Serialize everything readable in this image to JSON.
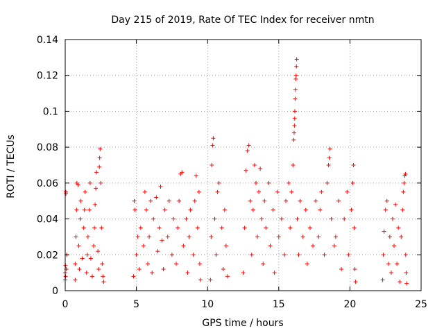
{
  "chart_data": {
    "type": "scatter",
    "title": "Day 215 of 2019, Rate Of TEC Index for receiver nmtn",
    "xlabel": "GPS time / hours",
    "ylabel": "ROTI / TECUs",
    "xlim": [
      0,
      25
    ],
    "ylim": [
      0,
      0.14
    ],
    "xticks": [
      0,
      5,
      10,
      15,
      20,
      25
    ],
    "yticks": [
      0,
      0.02,
      0.04,
      0.06,
      0.08,
      0.1,
      0.12,
      0.14
    ],
    "xtick_labels": [
      "0",
      "5",
      "10",
      "15",
      "20",
      "25"
    ],
    "ytick_labels": [
      "0",
      "0.02",
      "0.04",
      "0.06",
      "0.08",
      "0.1",
      "0.12",
      "0.14"
    ],
    "grid": true,
    "marker": "+",
    "colors": {
      "marker": "#ff0000",
      "grid": "#a0a0a0",
      "axes": "#000000"
    },
    "series": [
      {
        "points": [
          [
            0.0,
            0.006
          ],
          [
            0.0,
            0.01
          ],
          [
            0.02,
            0.014
          ],
          [
            0.03,
            0.008
          ],
          [
            0.05,
            0.054
          ],
          [
            0.05,
            0.055
          ],
          [
            0.08,
            0.012
          ],
          [
            0.1,
            0.02
          ],
          [
            0.7,
            0.006
          ],
          [
            0.7,
            0.015
          ],
          [
            0.75,
            0.03
          ],
          [
            0.8,
            0.045
          ],
          [
            0.82,
            0.06
          ],
          [
            0.9,
            0.059
          ],
          [
            0.95,
            0.025
          ],
          [
            1.0,
            0.012
          ],
          [
            1.05,
            0.04
          ],
          [
            1.1,
            0.05
          ],
          [
            1.2,
            0.018
          ],
          [
            1.3,
            0.035
          ],
          [
            1.35,
            0.045
          ],
          [
            1.4,
            0.055
          ],
          [
            1.5,
            0.01
          ],
          [
            1.55,
            0.02
          ],
          [
            1.6,
            0.03
          ],
          [
            1.7,
            0.045
          ],
          [
            1.75,
            0.06
          ],
          [
            1.8,
            0.018
          ],
          [
            1.9,
            0.008
          ],
          [
            2.0,
            0.025
          ],
          [
            2.05,
            0.035
          ],
          [
            2.1,
            0.048
          ],
          [
            2.15,
            0.057
          ],
          [
            2.2,
            0.066
          ],
          [
            2.3,
            0.022
          ],
          [
            2.35,
            0.012
          ],
          [
            2.4,
            0.069
          ],
          [
            2.42,
            0.074
          ],
          [
            2.45,
            0.079
          ],
          [
            2.5,
            0.06
          ],
          [
            2.55,
            0.035
          ],
          [
            2.6,
            0.015
          ],
          [
            2.65,
            0.008
          ],
          [
            2.7,
            0.005
          ],
          [
            4.8,
            0.008
          ],
          [
            4.85,
            0.05
          ],
          [
            4.9,
            0.045
          ],
          [
            5.0,
            0.02
          ],
          [
            5.1,
            0.03
          ],
          [
            5.2,
            0.012
          ],
          [
            5.3,
            0.035
          ],
          [
            5.5,
            0.025
          ],
          [
            5.6,
            0.055
          ],
          [
            5.7,
            0.045
          ],
          [
            5.8,
            0.015
          ],
          [
            5.9,
            0.03
          ],
          [
            6.0,
            0.05
          ],
          [
            6.1,
            0.01
          ],
          [
            6.2,
            0.04
          ],
          [
            6.4,
            0.052
          ],
          [
            6.5,
            0.022
          ],
          [
            6.6,
            0.035
          ],
          [
            6.7,
            0.058
          ],
          [
            6.8,
            0.028
          ],
          [
            6.9,
            0.012
          ],
          [
            7.0,
            0.045
          ],
          [
            7.2,
            0.03
          ],
          [
            7.3,
            0.05
          ],
          [
            7.5,
            0.02
          ],
          [
            7.6,
            0.04
          ],
          [
            7.8,
            0.015
          ],
          [
            7.9,
            0.035
          ],
          [
            8.0,
            0.05
          ],
          [
            8.1,
            0.065
          ],
          [
            8.2,
            0.066
          ],
          [
            8.3,
            0.025
          ],
          [
            8.5,
            0.04
          ],
          [
            8.6,
            0.01
          ],
          [
            8.7,
            0.03
          ],
          [
            8.8,
            0.045
          ],
          [
            9.0,
            0.02
          ],
          [
            9.1,
            0.05
          ],
          [
            9.2,
            0.064
          ],
          [
            9.3,
            0.035
          ],
          [
            9.4,
            0.055
          ],
          [
            9.45,
            0.015
          ],
          [
            9.5,
            0.006
          ],
          [
            10.2,
            0.006
          ],
          [
            10.25,
            0.03
          ],
          [
            10.3,
            0.07
          ],
          [
            10.35,
            0.081
          ],
          [
            10.4,
            0.085
          ],
          [
            10.5,
            0.04
          ],
          [
            10.6,
            0.02
          ],
          [
            10.7,
            0.055
          ],
          [
            10.8,
            0.06
          ],
          [
            11.0,
            0.035
          ],
          [
            11.1,
            0.012
          ],
          [
            11.2,
            0.045
          ],
          [
            11.3,
            0.025
          ],
          [
            11.4,
            0.008
          ],
          [
            12.5,
            0.01
          ],
          [
            12.6,
            0.035
          ],
          [
            12.7,
            0.067
          ],
          [
            12.8,
            0.078
          ],
          [
            12.9,
            0.081
          ],
          [
            13.0,
            0.05
          ],
          [
            13.1,
            0.02
          ],
          [
            13.2,
            0.045
          ],
          [
            13.3,
            0.07
          ],
          [
            13.4,
            0.06
          ],
          [
            13.5,
            0.03
          ],
          [
            13.6,
            0.055
          ],
          [
            13.7,
            0.068
          ],
          [
            13.8,
            0.04
          ],
          [
            13.9,
            0.015
          ],
          [
            14.0,
            0.05
          ],
          [
            14.1,
            0.035
          ],
          [
            14.3,
            0.06
          ],
          [
            14.4,
            0.025
          ],
          [
            14.6,
            0.045
          ],
          [
            14.7,
            0.01
          ],
          [
            14.9,
            0.055
          ],
          [
            15.0,
            0.03
          ],
          [
            15.2,
            0.04
          ],
          [
            15.4,
            0.02
          ],
          [
            15.5,
            0.05
          ],
          [
            15.7,
            0.06
          ],
          [
            15.8,
            0.035
          ],
          [
            15.9,
            0.055
          ],
          [
            16.0,
            0.07
          ],
          [
            16.05,
            0.084
          ],
          [
            16.08,
            0.088
          ],
          [
            16.1,
            0.092
          ],
          [
            16.12,
            0.096
          ],
          [
            16.13,
            0.1
          ],
          [
            16.15,
            0.107
          ],
          [
            16.17,
            0.112
          ],
          [
            16.2,
            0.118
          ],
          [
            16.22,
            0.12
          ],
          [
            16.24,
            0.125
          ],
          [
            16.26,
            0.129
          ],
          [
            16.3,
            0.04
          ],
          [
            16.4,
            0.02
          ],
          [
            16.5,
            0.05
          ],
          [
            16.7,
            0.03
          ],
          [
            16.9,
            0.045
          ],
          [
            17.0,
            0.015
          ],
          [
            17.2,
            0.035
          ],
          [
            17.4,
            0.025
          ],
          [
            17.6,
            0.05
          ],
          [
            17.8,
            0.03
          ],
          [
            17.9,
            0.045
          ],
          [
            18.0,
            0.055
          ],
          [
            18.2,
            0.02
          ],
          [
            18.4,
            0.06
          ],
          [
            18.5,
            0.07
          ],
          [
            18.55,
            0.074
          ],
          [
            18.6,
            0.079
          ],
          [
            18.7,
            0.04
          ],
          [
            18.9,
            0.025
          ],
          [
            19.0,
            0.03
          ],
          [
            19.2,
            0.05
          ],
          [
            19.4,
            0.012
          ],
          [
            19.6,
            0.04
          ],
          [
            19.8,
            0.055
          ],
          [
            19.9,
            0.02
          ],
          [
            20.1,
            0.045
          ],
          [
            20.2,
            0.06
          ],
          [
            20.25,
            0.07
          ],
          [
            20.3,
            0.035
          ],
          [
            20.35,
            0.012
          ],
          [
            20.4,
            0.005
          ],
          [
            22.3,
            0.006
          ],
          [
            22.35,
            0.02
          ],
          [
            22.4,
            0.033
          ],
          [
            22.5,
            0.045
          ],
          [
            22.6,
            0.05
          ],
          [
            22.7,
            0.015
          ],
          [
            22.8,
            0.03
          ],
          [
            22.9,
            0.01
          ],
          [
            23.0,
            0.04
          ],
          [
            23.1,
            0.025
          ],
          [
            23.2,
            0.048
          ],
          [
            23.3,
            0.015
          ],
          [
            23.4,
            0.035
          ],
          [
            23.5,
            0.005
          ],
          [
            23.6,
            0.03
          ],
          [
            23.7,
            0.045
          ],
          [
            23.75,
            0.055
          ],
          [
            23.8,
            0.06
          ],
          [
            23.85,
            0.064
          ],
          [
            23.9,
            0.065
          ],
          [
            23.92,
            0.02
          ],
          [
            23.95,
            0.01
          ],
          [
            23.98,
            0.004
          ]
        ]
      }
    ]
  }
}
